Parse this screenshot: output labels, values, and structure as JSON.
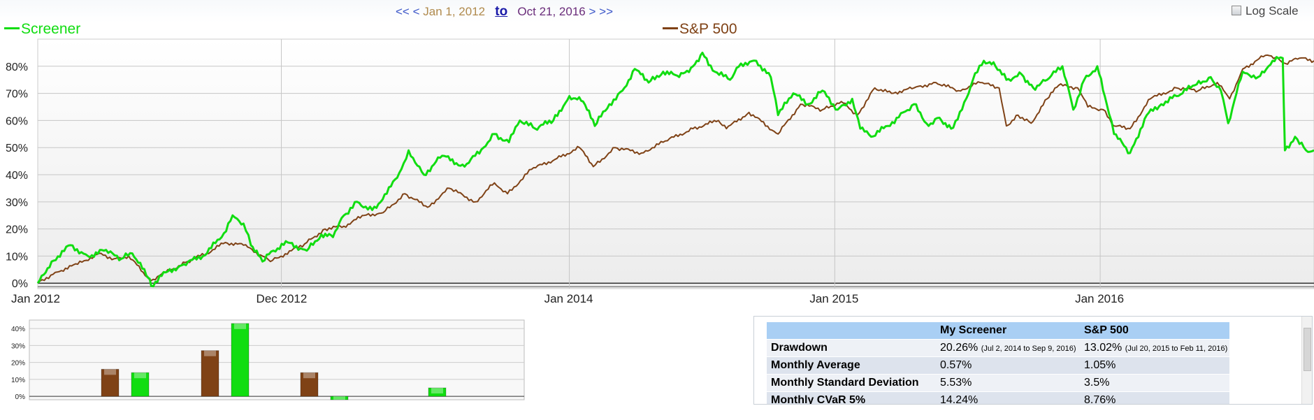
{
  "nav": {
    "prev_far": "<<",
    "prev": "<",
    "start_date": "Jan 1, 2012",
    "to_link": "to",
    "end_date": "Oct 21, 2016",
    "next": ">",
    "next_far": ">>"
  },
  "log_scale": {
    "label": "Log Scale",
    "checked": false
  },
  "colors": {
    "screener": "#11dd11",
    "sp500": "#7f4216"
  },
  "chart_data": [
    {
      "type": "line",
      "title": "",
      "x_tick_labels": [
        "Jan 2012",
        "Dec 2012",
        "Jan 2014",
        "Jan 2015",
        "Jan 2016"
      ],
      "y_tick_labels": [
        "0%",
        "10%",
        "20%",
        "30%",
        "40%",
        "50%",
        "60%",
        "70%",
        "80%"
      ],
      "ylim": [
        -2,
        90
      ],
      "xlim": [
        "2012-01-01",
        "2016-10-21"
      ],
      "grid": true,
      "legend_placement": "top",
      "series": [
        {
          "name": "Screener",
          "color": "#11dd11",
          "points": [
            [
              "2012-01-01",
              0
            ],
            [
              "2012-01-20",
              8
            ],
            [
              "2012-02-15",
              14
            ],
            [
              "2012-03-10",
              10
            ],
            [
              "2012-04-01",
              12
            ],
            [
              "2012-04-25",
              9
            ],
            [
              "2012-05-10",
              11
            ],
            [
              "2012-06-01",
              2
            ],
            [
              "2012-06-05",
              -1
            ],
            [
              "2012-06-25",
              4
            ],
            [
              "2012-07-20",
              7
            ],
            [
              "2012-08-15",
              10
            ],
            [
              "2012-09-10",
              17
            ],
            [
              "2012-09-25",
              25
            ],
            [
              "2012-10-10",
              22
            ],
            [
              "2012-10-20",
              14
            ],
            [
              "2012-11-05",
              8
            ],
            [
              "2012-11-20",
              12
            ],
            [
              "2012-12-10",
              15
            ],
            [
              "2013-01-05",
              12
            ],
            [
              "2013-01-25",
              18
            ],
            [
              "2013-02-10",
              17
            ],
            [
              "2013-02-25",
              25
            ],
            [
              "2013-03-15",
              30
            ],
            [
              "2013-04-05",
              27
            ],
            [
              "2013-04-25",
              33
            ],
            [
              "2013-05-15",
              42
            ],
            [
              "2013-05-25",
              49
            ],
            [
              "2013-06-15",
              40
            ],
            [
              "2013-07-10",
              47
            ],
            [
              "2013-08-10",
              43
            ],
            [
              "2013-09-05",
              50
            ],
            [
              "2013-09-20",
              55
            ],
            [
              "2013-10-10",
              52
            ],
            [
              "2013-10-25",
              60
            ],
            [
              "2013-11-15",
              57
            ],
            [
              "2013-12-10",
              60
            ],
            [
              "2014-01-01",
              69
            ],
            [
              "2014-01-20",
              67
            ],
            [
              "2014-02-05",
              58
            ],
            [
              "2014-02-25",
              66
            ],
            [
              "2014-03-15",
              71
            ],
            [
              "2014-04-01",
              79
            ],
            [
              "2014-04-20",
              74
            ],
            [
              "2014-05-10",
              78
            ],
            [
              "2014-06-01",
              76
            ],
            [
              "2014-06-20",
              80
            ],
            [
              "2014-07-03",
              85
            ],
            [
              "2014-07-20",
              78
            ],
            [
              "2014-08-10",
              75
            ],
            [
              "2014-08-25",
              81
            ],
            [
              "2014-09-15",
              82
            ],
            [
              "2014-10-05",
              76
            ],
            [
              "2014-10-15",
              62
            ],
            [
              "2014-11-05",
              70
            ],
            [
              "2014-11-25",
              66
            ],
            [
              "2014-12-15",
              71
            ],
            [
              "2015-01-05",
              64
            ],
            [
              "2015-01-25",
              68
            ],
            [
              "2015-02-05",
              57
            ],
            [
              "2015-02-20",
              54
            ],
            [
              "2015-03-15",
              58
            ],
            [
              "2015-04-05",
              63
            ],
            [
              "2015-04-20",
              66
            ],
            [
              "2015-05-10",
              58
            ],
            [
              "2015-05-25",
              61
            ],
            [
              "2015-06-10",
              57
            ],
            [
              "2015-06-25",
              64
            ],
            [
              "2015-07-10",
              75
            ],
            [
              "2015-07-25",
              82
            ],
            [
              "2015-08-10",
              80
            ],
            [
              "2015-08-25",
              75
            ],
            [
              "2015-09-15",
              77
            ],
            [
              "2015-10-01",
              72
            ],
            [
              "2015-10-20",
              75
            ],
            [
              "2015-11-10",
              80
            ],
            [
              "2015-11-25",
              64
            ],
            [
              "2015-12-10",
              75
            ],
            [
              "2015-12-28",
              80
            ],
            [
              "2016-01-10",
              66
            ],
            [
              "2016-01-20",
              55
            ],
            [
              "2016-02-11",
              48
            ],
            [
              "2016-03-05",
              62
            ],
            [
              "2016-03-25",
              66
            ],
            [
              "2016-04-15",
              69
            ],
            [
              "2016-05-10",
              73
            ],
            [
              "2016-06-01",
              76
            ],
            [
              "2016-06-15",
              71
            ],
            [
              "2016-06-25",
              59
            ],
            [
              "2016-07-15",
              78
            ],
            [
              "2016-08-05",
              76
            ],
            [
              "2016-08-25",
              82
            ],
            [
              "2016-09-08",
              83
            ],
            [
              "2016-09-11",
              49
            ],
            [
              "2016-09-25",
              54
            ],
            [
              "2016-10-10",
              49
            ],
            [
              "2016-10-21",
              49
            ]
          ]
        },
        {
          "name": "S&P 500",
          "color": "#7f4216",
          "points": [
            [
              "2012-01-01",
              0
            ],
            [
              "2012-01-25",
              4
            ],
            [
              "2012-02-25",
              7
            ],
            [
              "2012-03-25",
              11
            ],
            [
              "2012-04-15",
              9
            ],
            [
              "2012-05-05",
              10
            ],
            [
              "2012-05-25",
              4
            ],
            [
              "2012-06-05",
              1
            ],
            [
              "2012-06-25",
              4
            ],
            [
              "2012-07-25",
              8
            ],
            [
              "2012-08-20",
              11
            ],
            [
              "2012-09-15",
              15
            ],
            [
              "2012-10-10",
              14
            ],
            [
              "2012-11-05",
              10
            ],
            [
              "2012-11-16",
              8
            ],
            [
              "2012-12-15",
              12
            ],
            [
              "2013-01-05",
              15
            ],
            [
              "2013-01-30",
              20
            ],
            [
              "2013-02-25",
              21
            ],
            [
              "2013-03-25",
              25
            ],
            [
              "2013-04-20",
              26
            ],
            [
              "2013-05-20",
              33
            ],
            [
              "2013-06-20",
              28
            ],
            [
              "2013-07-20",
              35
            ],
            [
              "2013-08-25",
              30
            ],
            [
              "2013-09-20",
              37
            ],
            [
              "2013-10-08",
              33
            ],
            [
              "2013-11-10",
              42
            ],
            [
              "2013-12-15",
              46
            ],
            [
              "2014-01-15",
              50
            ],
            [
              "2014-02-03",
              43
            ],
            [
              "2014-03-05",
              50
            ],
            [
              "2014-04-10",
              48
            ],
            [
              "2014-05-10",
              52
            ],
            [
              "2014-06-20",
              57
            ],
            [
              "2014-07-25",
              60
            ],
            [
              "2014-08-05",
              57
            ],
            [
              "2014-09-05",
              63
            ],
            [
              "2014-10-15",
              55
            ],
            [
              "2014-11-15",
              66
            ],
            [
              "2014-12-15",
              64
            ],
            [
              "2015-01-10",
              67
            ],
            [
              "2015-02-01",
              62
            ],
            [
              "2015-02-25",
              72
            ],
            [
              "2015-03-20",
              70
            ],
            [
              "2015-04-20",
              72
            ],
            [
              "2015-05-20",
              74
            ],
            [
              "2015-06-20",
              71
            ],
            [
              "2015-07-20",
              74
            ],
            [
              "2015-08-15",
              72
            ],
            [
              "2015-08-25",
              58
            ],
            [
              "2015-09-10",
              62
            ],
            [
              "2015-09-28",
              59
            ],
            [
              "2015-10-20",
              68
            ],
            [
              "2015-11-05",
              73
            ],
            [
              "2015-12-01",
              72
            ],
            [
              "2015-12-15",
              65
            ],
            [
              "2016-01-05",
              64
            ],
            [
              "2016-01-20",
              58
            ],
            [
              "2016-02-11",
              57
            ],
            [
              "2016-03-10",
              68
            ],
            [
              "2016-04-15",
              72
            ],
            [
              "2016-05-15",
              71
            ],
            [
              "2016-06-10",
              74
            ],
            [
              "2016-06-27",
              68
            ],
            [
              "2016-07-15",
              79
            ],
            [
              "2016-08-15",
              84
            ],
            [
              "2016-09-01",
              83
            ],
            [
              "2016-09-12",
              81
            ],
            [
              "2016-10-01",
              83
            ],
            [
              "2016-10-21",
              82
            ]
          ]
        }
      ]
    },
    {
      "type": "bar",
      "y_tick_labels": [
        "0%",
        "10%",
        "20%",
        "30%",
        "40%"
      ],
      "ylim": [
        -2,
        45
      ],
      "groups": [
        {
          "values": [
            {
              "series": "S&P 500",
              "value": 16
            },
            {
              "series": "Screener",
              "value": 14
            }
          ]
        },
        {
          "values": [
            {
              "series": "S&P 500",
              "value": 27
            },
            {
              "series": "Screener",
              "value": 43
            }
          ]
        },
        {
          "values": [
            {
              "series": "S&P 500",
              "value": 14
            },
            {
              "series": "Screener",
              "value": -2
            }
          ]
        },
        {
          "values": [
            {
              "series": "S&P 500",
              "value": 0
            },
            {
              "series": "Screener",
              "value": 5
            }
          ]
        }
      ]
    }
  ],
  "stats_table": {
    "headers": [
      "",
      "My Screener",
      "S&P 500"
    ],
    "rows": [
      {
        "label": "Drawdown",
        "screener": "20.26%",
        "screener_note": "(Jul 2, 2014 to Sep 9, 2016)",
        "sp500": "13.02%",
        "sp500_note": "(Jul 20, 2015 to Feb 11, 2016)"
      },
      {
        "label": "Monthly Average",
        "screener": "0.57%",
        "sp500": "1.05%"
      },
      {
        "label": "Monthly Standard Deviation",
        "screener": "5.53%",
        "sp500": "3.5%"
      },
      {
        "label": "Monthly CVaR 5%",
        "screener": "14.24%",
        "sp500": "8.76%"
      }
    ]
  }
}
